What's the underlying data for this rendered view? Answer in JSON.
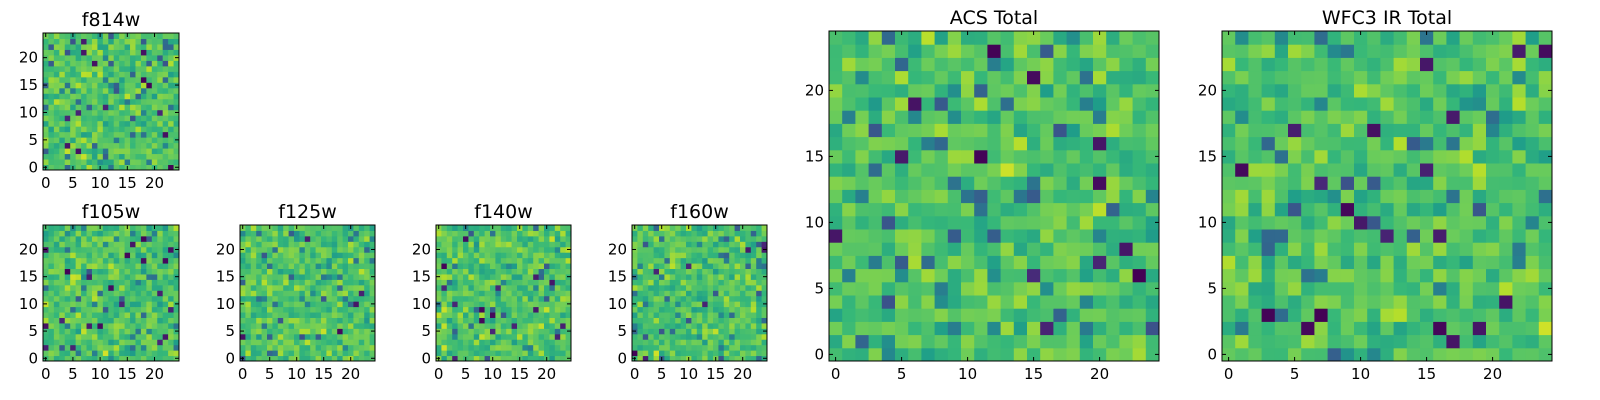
{
  "chart_data": [
    {
      "type": "heatmap",
      "id": "f814w",
      "title": "f814w",
      "grid": [
        25,
        25
      ],
      "xticks": [
        "0",
        "5",
        "10",
        "15",
        "20"
      ],
      "yticks": [
        "0",
        "5",
        "10",
        "15",
        "20"
      ],
      "seed": 11,
      "colormap": "viridis"
    },
    {
      "type": "heatmap",
      "id": "f105w",
      "title": "f105w",
      "grid": [
        25,
        25
      ],
      "xticks": [
        "0",
        "5",
        "10",
        "15",
        "20"
      ],
      "yticks": [
        "0",
        "5",
        "10",
        "15",
        "20"
      ],
      "seed": 23,
      "colormap": "viridis"
    },
    {
      "type": "heatmap",
      "id": "f125w",
      "title": "f125w",
      "grid": [
        25,
        25
      ],
      "xticks": [
        "0",
        "5",
        "10",
        "15",
        "20"
      ],
      "yticks": [
        "0",
        "5",
        "10",
        "15",
        "20"
      ],
      "seed": 37,
      "colormap": "viridis"
    },
    {
      "type": "heatmap",
      "id": "f140w",
      "title": "f140w",
      "grid": [
        25,
        25
      ],
      "xticks": [
        "0",
        "5",
        "10",
        "15",
        "20"
      ],
      "yticks": [
        "0",
        "5",
        "10",
        "15",
        "20"
      ],
      "seed": 41,
      "colormap": "viridis"
    },
    {
      "type": "heatmap",
      "id": "f160w",
      "title": "f160w",
      "grid": [
        25,
        25
      ],
      "xticks": [
        "0",
        "5",
        "10",
        "15",
        "20"
      ],
      "yticks": [
        "0",
        "5",
        "10",
        "15",
        "20"
      ],
      "seed": 59,
      "colormap": "viridis"
    },
    {
      "type": "heatmap",
      "id": "acs-total",
      "title": "ACS Total",
      "grid": [
        25,
        25
      ],
      "xticks": [
        "0",
        "5",
        "10",
        "15",
        "20"
      ],
      "yticks": [
        "0",
        "5",
        "10",
        "15",
        "20"
      ],
      "seed": 67,
      "colormap": "viridis"
    },
    {
      "type": "heatmap",
      "id": "wfc3-ir-total",
      "title": "WFC3 IR Total",
      "grid": [
        25,
        25
      ],
      "xticks": [
        "0",
        "5",
        "10",
        "15",
        "20"
      ],
      "yticks": [
        "0",
        "5",
        "10",
        "15",
        "20"
      ],
      "seed": 83,
      "colormap": "viridis"
    }
  ]
}
